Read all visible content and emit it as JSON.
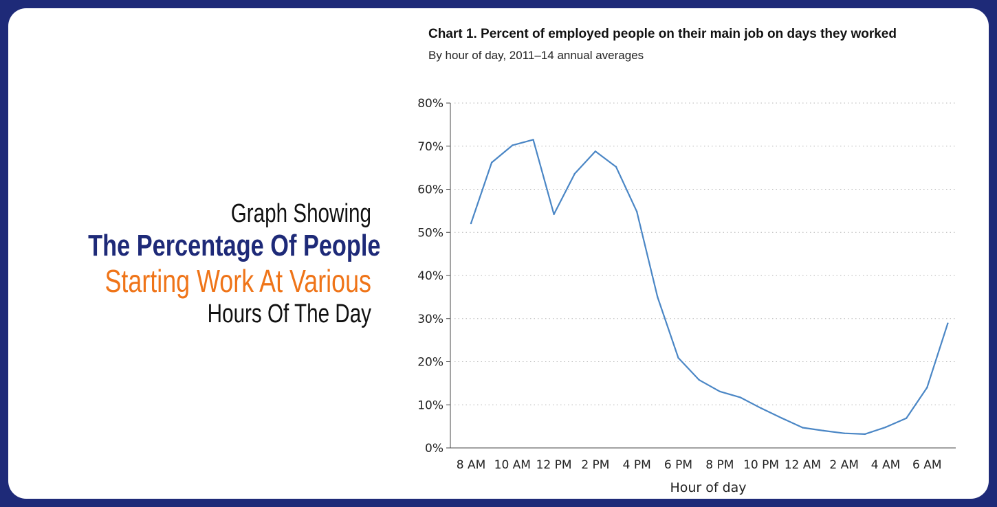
{
  "headline": {
    "line1": "Graph Showing",
    "line2": "The Percentage Of People",
    "line3": "Starting Work At Various",
    "line4": "Hours Of The Day"
  },
  "colors": {
    "frame": "#1e2a78",
    "headline_blue": "#1e2a78",
    "headline_orange": "#ef7418",
    "series_line": "#4a86c5"
  },
  "chart_data": {
    "type": "line",
    "title": "Chart 1. Percent of employed people on their main job on days they worked",
    "subtitle": "By hour of day, 2011–14 annual averages",
    "xlabel": "Hour of day",
    "ylabel": "",
    "x": [
      "8 AM",
      "9 AM",
      "10 AM",
      "11 AM",
      "12 PM",
      "1 PM",
      "2 PM",
      "3 PM",
      "4 PM",
      "5 PM",
      "6 PM",
      "7 PM",
      "8 PM",
      "9 PM",
      "10 PM",
      "11 PM",
      "12 AM",
      "1 AM",
      "2 AM",
      "3 AM",
      "4 AM",
      "5 AM",
      "6 AM",
      "7 AM"
    ],
    "xticks": [
      "8 AM",
      "10 AM",
      "12 PM",
      "2 PM",
      "4 PM",
      "6 PM",
      "8 PM",
      "10 PM",
      "12 AM",
      "2 AM",
      "4 AM",
      "6 AM"
    ],
    "values": [
      52.1,
      66.2,
      70.2,
      71.5,
      54.2,
      63.6,
      68.8,
      65.2,
      54.8,
      35.0,
      20.9,
      15.8,
      13.1,
      11.7,
      9.2,
      6.9,
      4.7,
      4.0,
      3.4,
      3.2,
      4.8,
      6.9,
      14.0,
      28.9
    ],
    "yticks": [
      "0%",
      "10%",
      "20%",
      "30%",
      "40%",
      "50%",
      "60%",
      "70%",
      "80%"
    ],
    "ylim": [
      0,
      80
    ],
    "grid": "horizontal-dotted",
    "legend": "none"
  }
}
